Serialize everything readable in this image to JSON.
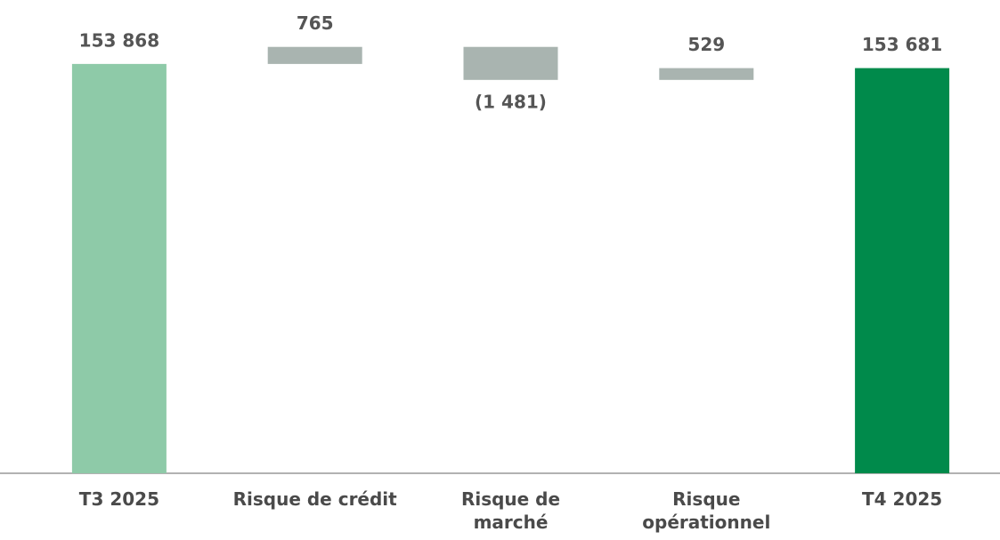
{
  "chart_data": {
    "type": "waterfall",
    "categories": [
      "T3 2025",
      "Risque de crédit",
      "Risque de marché",
      "Risque opérationnel",
      "T4 2025"
    ],
    "values": [
      153868,
      765,
      -1481,
      529,
      153681
    ],
    "value_labels": [
      "153 868",
      "765",
      "(1 481)",
      "529",
      "153 681"
    ],
    "kinds": [
      "total",
      "delta",
      "delta",
      "delta",
      "total"
    ],
    "colors": [
      "#8ecaa8",
      "#a9b4b0",
      "#a9b4b0",
      "#a9b4b0",
      "#008a4b"
    ],
    "ylim": [
      135500,
      155500
    ]
  }
}
